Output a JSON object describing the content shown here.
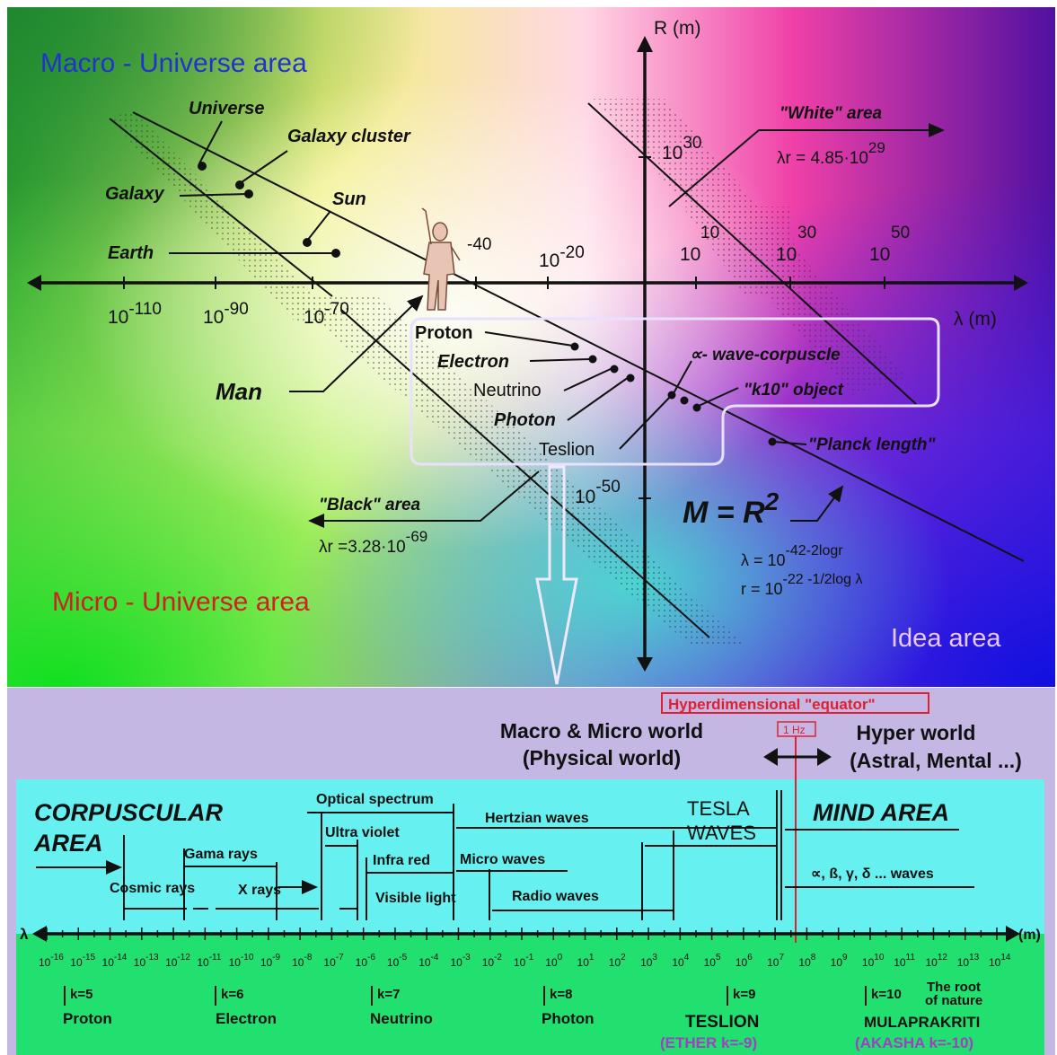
{
  "top": {
    "macro_label": "Macro - Universe area",
    "micro_label": "Micro - Universe area",
    "idea_label": "Idea area",
    "r_axis": "R (m)",
    "lambda_axis": "λ (m)",
    "objects": {
      "universe": "Universe",
      "galaxy_cluster": "Galaxy cluster",
      "galaxy": "Galaxy",
      "sun": "Sun",
      "earth": "Earth",
      "man": "Man"
    },
    "white_area": "\"White\" area",
    "white_eq": "λr = 4.85·10",
    "white_exp": "29",
    "black_area": "\"Black\" area",
    "black_eq": "λr =3.28·10",
    "black_exp": "-69",
    "box_items": {
      "proton": "Proton",
      "electron": "Electron",
      "neutrino": "Neutrino",
      "photon": "Photon",
      "teslion": "Teslion"
    },
    "wave_corpuscle": "∝- wave-corpuscle",
    "k10_object": "\"k10\" object",
    "planck": "\"Planck length\"",
    "mr_eq": "M = R",
    "mr_exp": "2",
    "lam_eq": "λ = 10",
    "lam_exp": "-42-2logr",
    "r_eq": "r = 10",
    "r_exp": "-22 -1/2log λ",
    "x_ticks": [
      {
        "base": "10",
        "exp": "-110"
      },
      {
        "base": "10",
        "exp": "-90"
      },
      {
        "base": "10",
        "exp": "-70"
      },
      {
        "base": "",
        "exp": "-40"
      },
      {
        "base": "10",
        "exp": "-20"
      },
      {
        "base": "10",
        "exp": "10"
      },
      {
        "base": "10",
        "exp": "30"
      },
      {
        "base": "10",
        "exp": "50"
      }
    ],
    "y_tick_top": {
      "base": "10",
      "exp": "30"
    },
    "y_tick_bottom": {
      "base": "10",
      "exp": "-50"
    }
  },
  "bottom": {
    "equator": "Hyperdimensional \"equator\"",
    "one_hz": "1 Hz",
    "physical_1": "Macro & Micro world",
    "physical_2": "(Physical world)",
    "hyper_1": "Hyper world",
    "hyper_2": "(Astral, Mental ...)",
    "corpuscular_1": "CORPUSCULAR",
    "corpuscular_2": "AREA",
    "mind_area": "MIND AREA",
    "tesla_1": "TESLA",
    "tesla_2": "WAVES",
    "optical": "Optical spectrum",
    "hertzian": "Hertzian waves",
    "ultra_violet": "Ultra violet",
    "gama": "Gama rays",
    "infra_red": "Infra red",
    "micro_waves": "Micro waves",
    "cosmic": "Cosmic rays",
    "xrays": "X rays",
    "visible": "Visible light",
    "radio": "Radio waves",
    "greek_waves": "∝, ß, γ, δ ... waves",
    "lambda": "λ",
    "unit": "(m)",
    "scale_exps": [
      "-16",
      "-15",
      "-14",
      "-13",
      "-12",
      "-11",
      "-10",
      "-9",
      "-8",
      "-7",
      "-6",
      "-5",
      "-4",
      "-3",
      "-2",
      "-1",
      "0",
      "1",
      "2",
      "3",
      "4",
      "5",
      "6",
      "7",
      "8",
      "9",
      "10",
      "11",
      "12",
      "13",
      "14"
    ],
    "k5": "k=5",
    "k5_name": "Proton",
    "k6": "k=6",
    "k6_name": "Electron",
    "k7": "k=7",
    "k7_name": "Neutrino",
    "k8": "k=8",
    "k8_name": "Photon",
    "k9": "k=9",
    "k9_name": "TESLION",
    "k9_sub": "(ETHER k=-9)",
    "k10": "k=10",
    "k10_name": "MULAPRAKRITI",
    "k10_sub": "(AKASHA k=-10)",
    "root_1": "The root",
    "root_2": "of nature"
  },
  "colors": {
    "macro": "#2233cc",
    "micro": "#cc2222",
    "idea": "#e8c8ff",
    "lavender_band": "#c4b7e4",
    "cyan_band": "#66f0f0",
    "green_band": "#22e070",
    "equator_red": "#e02030",
    "akasha_purple": "#a040c0"
  }
}
